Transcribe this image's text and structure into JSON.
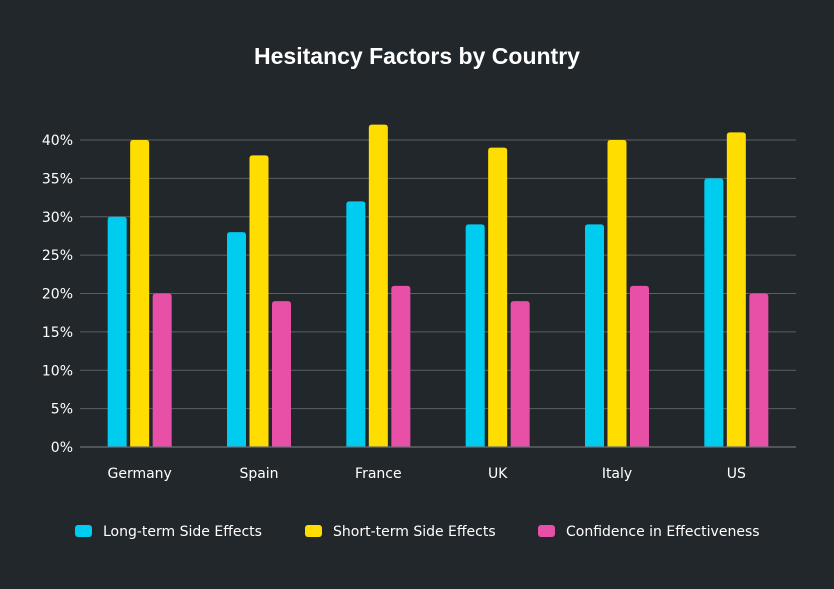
{
  "chart_data": {
    "type": "bar",
    "title": "Hesitancy Factors by Country",
    "xlabel": "",
    "ylabel": "",
    "ylim": [
      0,
      40
    ],
    "yticks": [
      0,
      5,
      10,
      15,
      20,
      25,
      30,
      35,
      40
    ],
    "ytick_suffix": "%",
    "grid": true,
    "legend_position": "bottom",
    "categories": [
      "Germany",
      "Spain",
      "France",
      "UK",
      "Italy",
      "US"
    ],
    "series": [
      {
        "name": "Long-term Side Effects",
        "color": "#00ccf0",
        "values": [
          30,
          28,
          32,
          29,
          29,
          35
        ]
      },
      {
        "name": "Short-term Side Effects",
        "color": "#ffdd00",
        "values": [
          40,
          38,
          42,
          39,
          40,
          41
        ]
      },
      {
        "name": "Confidence in Effectiveness",
        "color": "#e84fa6",
        "values": [
          20,
          19,
          21,
          19,
          21,
          20
        ]
      }
    ]
  }
}
